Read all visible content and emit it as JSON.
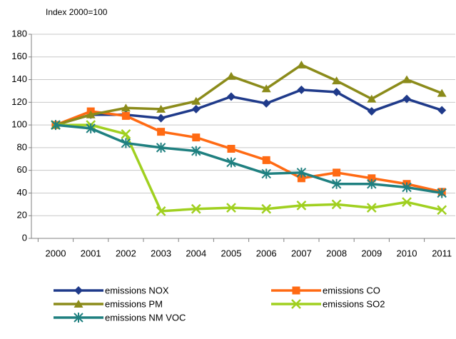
{
  "chart_data": {
    "type": "line",
    "title": "Index 2000=100",
    "categories": [
      "2000",
      "2001",
      "2002",
      "2003",
      "2004",
      "2005",
      "2006",
      "2007",
      "2008",
      "2009",
      "2010",
      "2011"
    ],
    "series": [
      {
        "name": "emissions NOX",
        "color": "#1f3a8a",
        "marker": "diamond",
        "values": [
          100,
          109,
          109,
          106,
          114,
          125,
          119,
          131,
          129,
          112,
          123,
          113
        ]
      },
      {
        "name": "emissions CO",
        "color": "#ff6a13",
        "marker": "square",
        "values": [
          100,
          112,
          108,
          94,
          89,
          79,
          69,
          53,
          58,
          53,
          48,
          41
        ]
      },
      {
        "name": "emissions PM",
        "color": "#8b8b1a",
        "marker": "triangle",
        "values": [
          100,
          109,
          115,
          114,
          121,
          143,
          132,
          153,
          139,
          123,
          140,
          128
        ]
      },
      {
        "name": "emissions SO2",
        "color": "#a0d020",
        "marker": "cross",
        "values": [
          100,
          100,
          92,
          24,
          26,
          27,
          26,
          29,
          30,
          27,
          32,
          25
        ]
      },
      {
        "name": "emissions NM VOC",
        "color": "#1f8080",
        "marker": "star",
        "values": [
          100,
          97,
          84,
          80,
          77,
          67,
          57,
          58,
          48,
          48,
          45,
          40
        ]
      }
    ],
    "ylim": [
      0,
      180
    ],
    "yticks": [
      0,
      20,
      40,
      60,
      80,
      100,
      120,
      140,
      160,
      180
    ],
    "grid": true
  }
}
